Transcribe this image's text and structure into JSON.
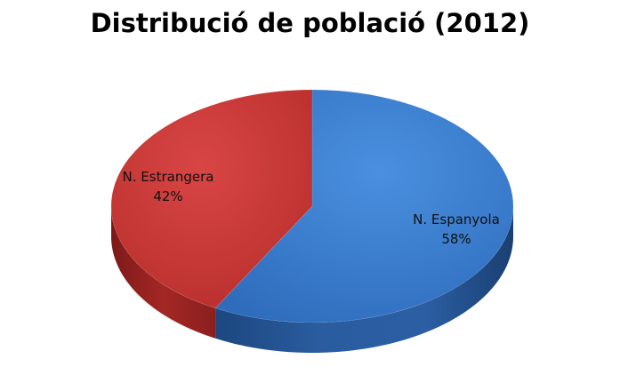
{
  "chart_data": {
    "type": "pie",
    "title": "Distribució de població (2012)",
    "slices": [
      {
        "name": "N. Espanyola",
        "value": 58,
        "label": "58%",
        "color": "#3d7fd0",
        "side_color": "#1f4e8c"
      },
      {
        "name": "N. Estrangera",
        "value": 42,
        "label": "42%",
        "color": "#c93a38",
        "side_color": "#8b1f1e"
      }
    ],
    "legend": "none",
    "style": "3d"
  }
}
